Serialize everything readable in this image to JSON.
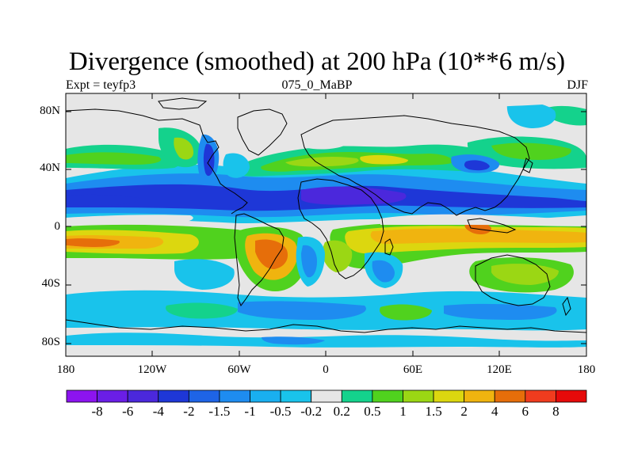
{
  "title": "Divergence (smoothed) at 200 hPa (10**6 m/s)",
  "subtitle_left": "Expt = teyfp3",
  "subtitle_center": "075_0_MaBP",
  "subtitle_right": "DJF",
  "map": {
    "lon_range": [
      -180,
      180
    ],
    "lat_range": [
      -90,
      90
    ],
    "variable": "divergence",
    "level": "200 hPa",
    "lat_tick_labels": [
      "80N",
      "40N",
      "0",
      "40S",
      "80S"
    ],
    "lat_tick_values": [
      80,
      40,
      0,
      -40,
      -80
    ],
    "lon_tick_labels": [
      "180",
      "120W",
      "60W",
      "0",
      "60E",
      "120E",
      "180"
    ],
    "lon_tick_values": [
      -180,
      -120,
      -60,
      0,
      60,
      120,
      180
    ]
  },
  "colorbar": {
    "labels": [
      "-8",
      "-6",
      "-4",
      "-2",
      "-1.5",
      "-1",
      "-0.5",
      "-0.2",
      "0.2",
      "0.5",
      "1",
      "1.5",
      "2",
      "4",
      "6",
      "8"
    ],
    "colors": [
      "#8c14f0",
      "#6a1ee6",
      "#4b28dc",
      "#1e37d7",
      "#1e64e6",
      "#1e8cf0",
      "#19aff0",
      "#19c3eb",
      "#e6e6e6",
      "#14d28c",
      "#50d21e",
      "#9bd714",
      "#dcd70f",
      "#f0b40f",
      "#e66e0a",
      "#f03c1e",
      "#e60a0a"
    ]
  }
}
